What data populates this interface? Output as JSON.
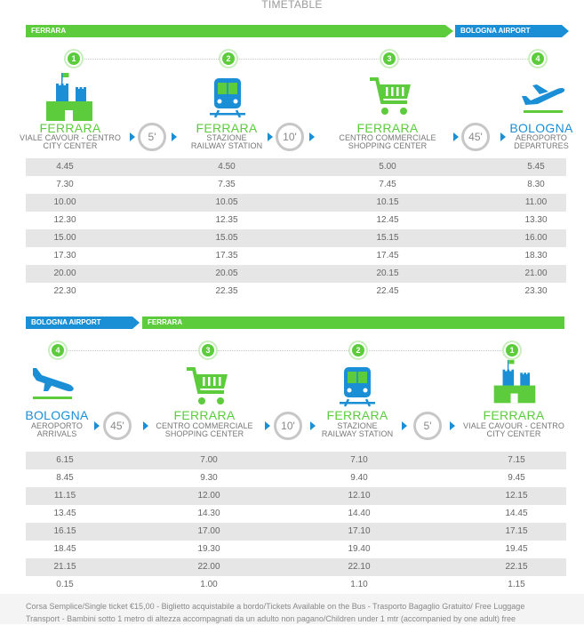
{
  "page": {
    "title": "TIMETABLE"
  },
  "outbound": {
    "bar_left": "FERRARA",
    "bar_right": "BOLOGNA AIRPORT",
    "stops": [
      {
        "num": "1",
        "city": "FERRARA",
        "sub1": "VIALE CAVOUR - CENTRO",
        "sub2": "CITY CENTER",
        "icon": "castle-icon"
      },
      {
        "num": "2",
        "city": "FERRARA",
        "sub1": "STAZIONE",
        "sub2": "RAILWAY STATION",
        "icon": "train-icon"
      },
      {
        "num": "3",
        "city": "FERRARA",
        "sub1": "CENTRO COMMERCIALE",
        "sub2": "SHOPPING CENTER",
        "icon": "cart-icon"
      },
      {
        "num": "4",
        "city": "BOLOGNA",
        "sub1": "AEROPORTO",
        "sub2": "DEPARTURES",
        "icon": "plane-departure-icon"
      }
    ],
    "durations": [
      "5'",
      "10'",
      "45'"
    ],
    "rows": [
      [
        "4.45",
        "4.50",
        "5.00",
        "5.45"
      ],
      [
        "7.30",
        "7.35",
        "7.45",
        "8.30"
      ],
      [
        "10.00",
        "10.05",
        "10.15",
        "11.00"
      ],
      [
        "12.30",
        "12.35",
        "12.45",
        "13.30"
      ],
      [
        "15.00",
        "15.05",
        "15.15",
        "16.00"
      ],
      [
        "17.30",
        "17.35",
        "17.45",
        "18.30"
      ],
      [
        "20.00",
        "20.05",
        "20.15",
        "21.00"
      ],
      [
        "22.30",
        "22.35",
        "22.45",
        "23.30"
      ]
    ]
  },
  "inbound": {
    "bar_left": "BOLOGNA AIRPORT",
    "bar_right": "FERRARA",
    "stops": [
      {
        "num": "4",
        "city": "BOLOGNA",
        "sub1": "AEROPORTO",
        "sub2": "ARRIVALS",
        "icon": "plane-arrival-icon"
      },
      {
        "num": "3",
        "city": "FERRARA",
        "sub1": "CENTRO COMMERCIALE",
        "sub2": "SHOPPING CENTER",
        "icon": "cart-icon"
      },
      {
        "num": "2",
        "city": "FERRARA",
        "sub1": "STAZIONE",
        "sub2": "RAILWAY STATION",
        "icon": "train-icon"
      },
      {
        "num": "1",
        "city": "FERRARA",
        "sub1": "VIALE CAVOUR - CENTRO",
        "sub2": "CITY CENTER",
        "icon": "castle-icon"
      }
    ],
    "durations": [
      "45'",
      "10'",
      "5'"
    ],
    "rows": [
      [
        "6.15",
        "7.00",
        "7.10",
        "7.15"
      ],
      [
        "8.45",
        "9.30",
        "9.40",
        "9.45"
      ],
      [
        "11.15",
        "12.00",
        "12.10",
        "12.15"
      ],
      [
        "13.45",
        "14.30",
        "14.40",
        "14.45"
      ],
      [
        "16.15",
        "17.00",
        "17.10",
        "17.15"
      ],
      [
        "18.45",
        "19.30",
        "19.40",
        "19.45"
      ],
      [
        "21.15",
        "22.00",
        "22.10",
        "22.15"
      ],
      [
        "0.15",
        "1.00",
        "1.10",
        "1.15"
      ]
    ]
  },
  "footer": {
    "line1": "Corsa Semplice/Single ticket €15,00 - Biglietto acquistabile a bordo/Tickets Available on the Bus - Trasporto Bagaglio Gratuito/ Free Luggage",
    "line2": "Transport - Bambini sotto 1 metro di altezza accompagnati da un adulto non pagano/Children under 1 mtr (accompanied by one adult) free"
  },
  "colors": {
    "green": "#5ccc3d",
    "blue": "#1a8fd6",
    "row_gray": "#e6e6e6"
  }
}
